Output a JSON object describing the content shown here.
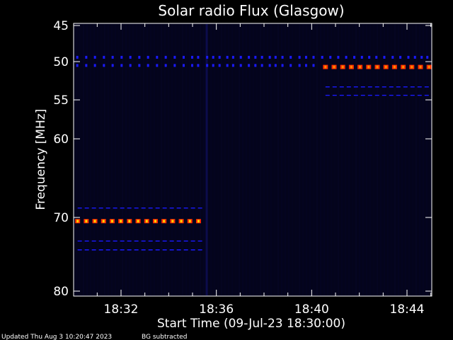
{
  "title": "Solar radio Flux (Glasgow)",
  "footer": {
    "updated": "Updated Thu Aug  3 10:20:47 2023",
    "note": "BG subtracted"
  },
  "chart_data": {
    "type": "heatmap",
    "title": "Solar radio Flux (Glasgow)",
    "xlabel": "Start Time (09-Jul-23 18:30:00)",
    "ylabel": "Frequency [MHz]",
    "x_ticks": [
      "18:32",
      "18:36",
      "18:40",
      "18:44"
    ],
    "y_ticks": [
      "45",
      "50",
      "55",
      "60",
      "70",
      "80"
    ],
    "x_range_minutes": [
      0,
      15
    ],
    "x_tick_minutes": [
      2,
      6,
      10,
      14
    ],
    "y_range_mhz": [
      45,
      80
    ],
    "y_tick_mhz": [
      45,
      50,
      55,
      60,
      70,
      80
    ],
    "y_scale": "non-linear (compressed above 60 MHz)",
    "background": "#000000",
    "plot_fill": "#04041c",
    "colors": {
      "weak": "#1a1aff",
      "medium": "#ff2a00",
      "strong": "#ffd000"
    },
    "features": [
      {
        "name": "",
        "freq_mhz": 70.5,
        "t_start_min": 0,
        "t_end_min": 5.5,
        "intensity": "strong"
      },
      {
        "name": "",
        "freq_mhz": 50.7,
        "t_start_min": 10.4,
        "t_end_min": 15,
        "intensity": "medium"
      },
      {
        "name": "",
        "freq_mhz": 49.4,
        "t_start_min": 0,
        "t_end_min": 15,
        "intensity": "weak"
      },
      {
        "name": "",
        "freq_mhz": 50.5,
        "t_start_min": 0,
        "t_end_min": 10.4,
        "intensity": "weak"
      },
      {
        "name": "",
        "freq_mhz": 53.3,
        "t_start_min": 10.4,
        "t_end_min": 15,
        "intensity": "weak"
      },
      {
        "name": "",
        "freq_mhz": 54.4,
        "t_start_min": 10.4,
        "t_end_min": 15,
        "intensity": "weak"
      },
      {
        "name": "",
        "freq_mhz": 68.8,
        "t_start_min": 0,
        "t_end_min": 5.5,
        "intensity": "weak"
      },
      {
        "name": "",
        "freq_mhz": 73.2,
        "t_start_min": 0,
        "t_end_min": 5.5,
        "intensity": "weak"
      },
      {
        "name": "",
        "freq_mhz": 74.4,
        "t_start_min": 0,
        "t_end_min": 5.5,
        "intensity": "weak"
      }
    ]
  }
}
